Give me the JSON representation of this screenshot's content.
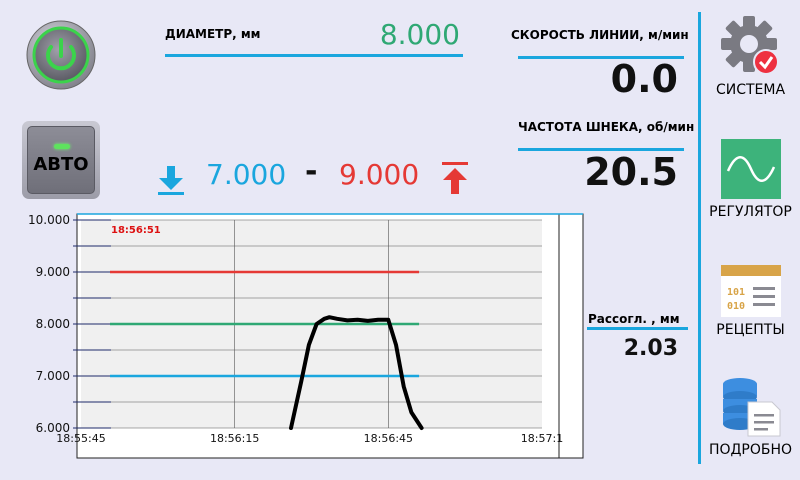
{
  "diameter": {
    "label": "ДИАМЕТР, мм",
    "value": "8.000"
  },
  "line_speed": {
    "label": "СКОРОСТЬ ЛИНИИ, м/мин",
    "value": "0.0"
  },
  "screw_freq": {
    "label": "ЧАСТОТА ШНЕКА, об/мин",
    "value": "20.5"
  },
  "range": {
    "min": "7.000",
    "separator": "-",
    "max": "9.000"
  },
  "auto_button": {
    "label": "АВТО"
  },
  "eccentricity": {
    "label": "Рассогл. , мм",
    "value": "2.03"
  },
  "nav": {
    "system": "СИСТЕМА",
    "regulator": "РЕГУЛЯТОР",
    "recipes": "РЕЦЕПТЫ",
    "details": "ПОДРОБНО"
  },
  "colors": {
    "accent": "#1aa6de",
    "target": "#2fa874",
    "max": "#e53935",
    "min": "#1aa6de",
    "trace": "#000000"
  },
  "chart_data": {
    "type": "line",
    "cursor_time": "18:56:51",
    "ylim": [
      6.0,
      10.0
    ],
    "yticks": [
      "10.000",
      "9.000",
      "8.000",
      "7.000",
      "6.000"
    ],
    "xticks": [
      "18:55:45",
      "18:56:15",
      "18:56:45",
      "18:57:1"
    ],
    "xlim_seconds": [
      0,
      90
    ],
    "reference_lines": [
      {
        "name": "max",
        "value": 9.0,
        "x_end_s": 66
      },
      {
        "name": "target",
        "value": 8.0,
        "x_end_s": 66
      },
      {
        "name": "min",
        "value": 7.0,
        "x_end_s": 66
      }
    ],
    "trace": {
      "x_s": [
        41,
        43,
        44.5,
        46,
        47.5,
        48.5,
        50,
        52,
        54,
        56,
        58,
        60,
        61.5,
        63,
        64.5,
        66.5
      ],
      "y": [
        6.0,
        6.9,
        7.6,
        8.0,
        8.1,
        8.13,
        8.1,
        8.07,
        8.08,
        8.06,
        8.08,
        8.08,
        7.6,
        6.8,
        6.3,
        6.0
      ]
    }
  }
}
